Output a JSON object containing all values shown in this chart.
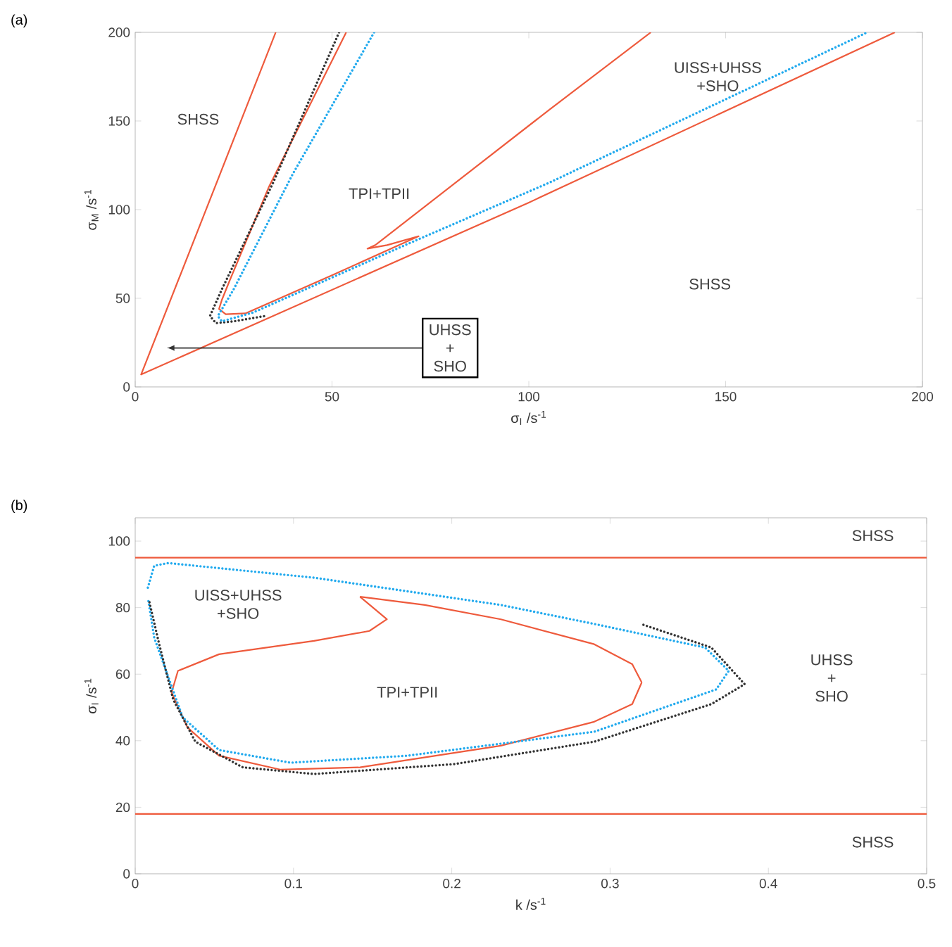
{
  "chart_data": [
    {
      "type": "line",
      "title": "(a)",
      "xlabel": "σ$_{I}$ /s$^{-1}$",
      "ylabel": "σ$_{M}$ /s$^{-1}$",
      "xlim": [
        0,
        200
      ],
      "ylim": [
        0,
        200
      ],
      "xticks": [
        0,
        50,
        100,
        150,
        200
      ],
      "yticks": [
        0,
        50,
        100,
        150,
        200
      ],
      "series": [
        {
          "color": "#ee5a3c",
          "line_style": "solid",
          "x": [
            35.7,
            18,
            1.5,
            100,
            193
          ],
          "values": [
            200,
            100,
            7,
            104,
            200
          ]
        },
        {
          "color": "#ee5a3c",
          "line_style": "solid",
          "x": [
            53.6,
            34,
            24,
            22,
            21.3,
            23,
            28,
            50,
            72,
            64,
            59,
            61,
            105,
            131
          ],
          "values": [
            200,
            113,
            60,
            49,
            44,
            41,
            41.5,
            63,
            85,
            80,
            78,
            80,
            156,
            200
          ]
        },
        {
          "color": "#333333",
          "line_style": "dotted",
          "x": [
            51.8,
            35,
            22,
            19,
            20.5,
            25,
            33
          ],
          "values": [
            200,
            115,
            55,
            40,
            36,
            37,
            40
          ]
        },
        {
          "color": "#22aaee",
          "line_style": "dotted",
          "x": [
            60.7,
            40,
            25,
            21,
            22,
            30,
            69.6,
            105,
            186
          ],
          "values": [
            200,
            120,
            55,
            40,
            37,
            42,
            81,
            115,
            200
          ]
        }
      ],
      "annotations": [
        "SHSS",
        "TPI+TPII",
        "UISS+UHSS +SHO",
        "SHSS",
        "UHSS + SHO"
      ]
    },
    {
      "type": "line",
      "title": "(b)",
      "xlabel": "k /s$^{-1}$",
      "ylabel": "σ$_{I}$ /s$^{-1}$",
      "xlim": [
        0,
        0.5
      ],
      "ylim": [
        0,
        107
      ],
      "xticks": [
        0,
        0.1,
        0.2,
        0.3,
        0.4,
        0.5
      ],
      "yticks": [
        0,
        20,
        40,
        60,
        80,
        100
      ],
      "series": [
        {
          "color": "#ee5a3c",
          "line_style": "solid",
          "x": [
            0,
            0.5
          ],
          "values": [
            95,
            95
          ]
        },
        {
          "color": "#ee5a3c",
          "line_style": "solid",
          "x": [
            0,
            0.5
          ],
          "values": [
            18,
            18
          ]
        },
        {
          "color": "#ee5a3c",
          "line_style": "solid",
          "x": [
            0.142,
            0.159,
            0.148,
            0.113,
            0.053,
            0.027,
            0.023,
            0.033,
            0.053,
            0.092,
            0.142,
            0.231,
            0.29,
            0.314,
            0.32
          ],
          "values": [
            83.3,
            76.5,
            73,
            70,
            66,
            61,
            54.5,
            44,
            35.5,
            31.3,
            32,
            38.5,
            45.7,
            51,
            57.5
          ]
        },
        {
          "color": "#ee5a3c",
          "line_style": "solid",
          "x": [
            0.32,
            0.314,
            0.29,
            0.231,
            0.183,
            0.142
          ],
          "values": [
            57.5,
            63,
            69,
            76.5,
            80.8,
            83.3
          ]
        },
        {
          "color": "#22aaee",
          "line_style": "dotted",
          "x": [
            0.008,
            0.012,
            0.021,
            0.113,
            0.231,
            0.291,
            0.36,
            0.375,
            0.367,
            0.29,
            0.172,
            0.098,
            0.053,
            0.03,
            0.012,
            0.008
          ],
          "values": [
            86,
            92.6,
            93.4,
            89,
            80.8,
            75,
            68,
            61,
            55.4,
            42.7,
            35.5,
            33.4,
            37.2,
            47,
            71,
            83
          ]
        },
        {
          "color": "#333333",
          "line_style": "dotted",
          "x": [
            0.009,
            0.015,
            0.024,
            0.038,
            0.068,
            0.113,
            0.202,
            0.29,
            0.364,
            0.385,
            0.364,
            0.32
          ],
          "values": [
            81.6,
            69.3,
            52.4,
            39.7,
            32,
            30,
            33,
            39.7,
            51,
            57,
            68,
            75
          ]
        }
      ],
      "annotations": [
        "SHSS",
        "UISS+UHSS +SHO",
        "TPI+TPII",
        "UHSS + SHO",
        "SHSS"
      ]
    }
  ]
}
